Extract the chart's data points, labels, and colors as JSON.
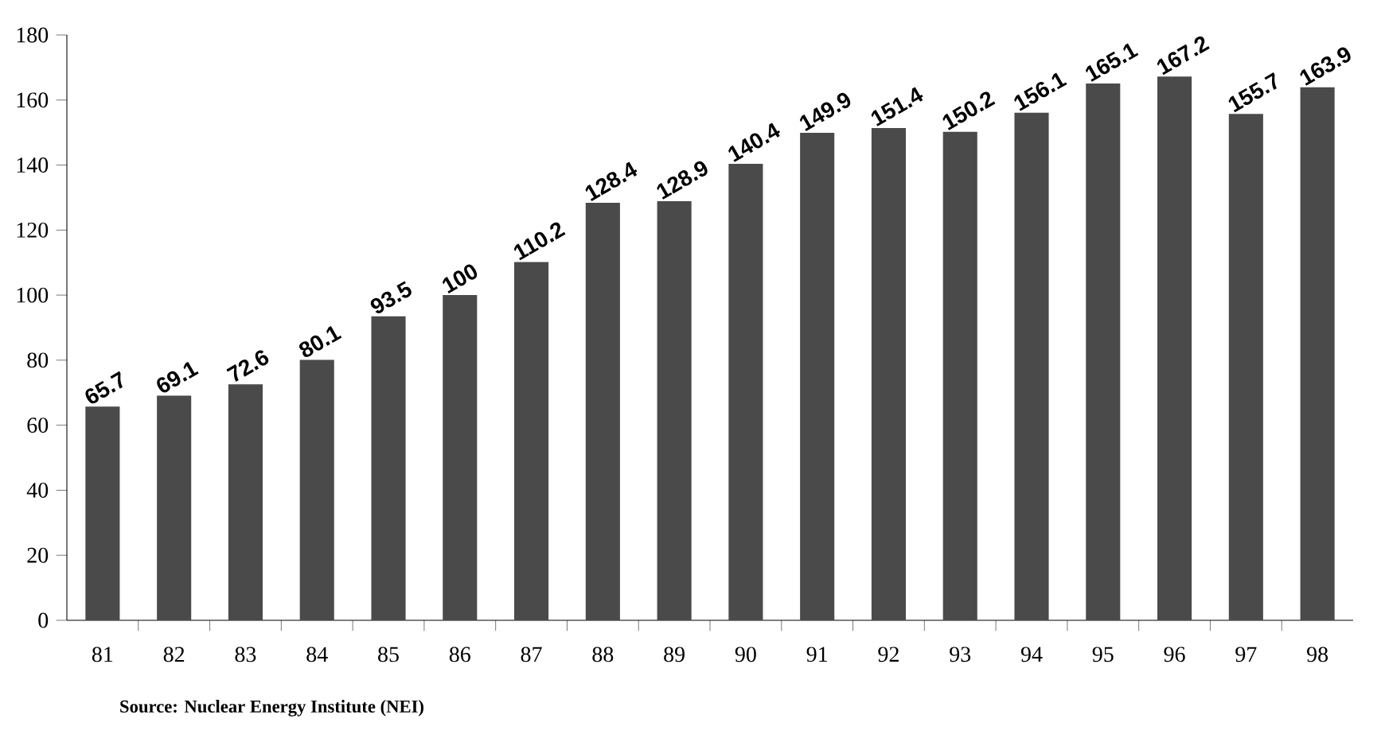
{
  "chart_data": {
    "type": "bar",
    "categories": [
      "81",
      "82",
      "83",
      "84",
      "85",
      "86",
      "87",
      "88",
      "89",
      "90",
      "91",
      "92",
      "93",
      "94",
      "95",
      "96",
      "97",
      "98"
    ],
    "values": [
      65.7,
      69.1,
      72.6,
      80.1,
      93.5,
      100,
      110.2,
      128.4,
      128.9,
      140.4,
      149.9,
      151.4,
      150.2,
      156.1,
      165.1,
      167.2,
      155.7,
      163.9
    ],
    "color": "#4a4a4a",
    "ylim": [
      0,
      180
    ],
    "yticks": [
      0,
      20,
      40,
      60,
      80,
      100,
      120,
      140,
      160,
      180
    ],
    "data_labels": true,
    "annotations": [
      "Source: Nuclear Energy Institute (NEI)"
    ]
  }
}
